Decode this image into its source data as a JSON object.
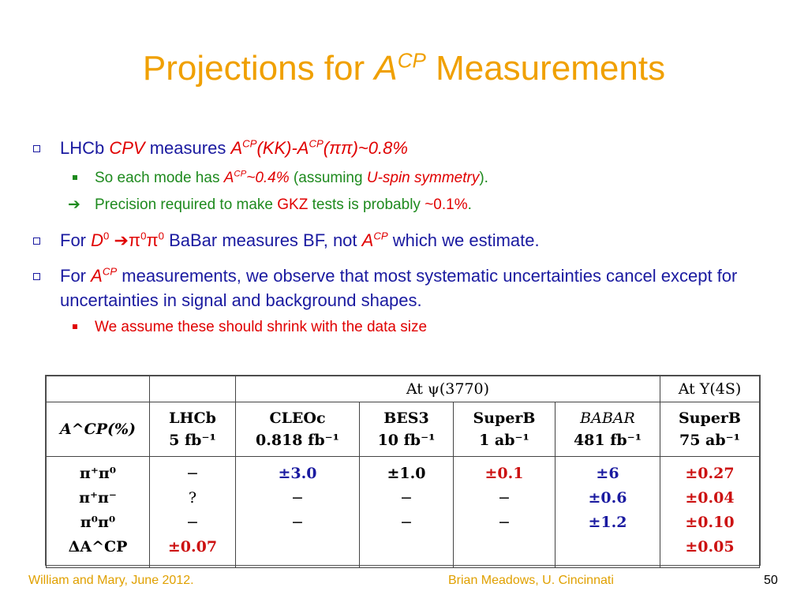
{
  "title": {
    "prefix": "Projections for ",
    "var": "A",
    "sup": "CP",
    "suffix": " Measurements"
  },
  "bullets": {
    "b1": {
      "t1": "LHCb ",
      "t2": "CPV",
      "t3": "  measures ",
      "t4": "A",
      "t5": "CP",
      "t6": "(KK)-A",
      "t7": "CP",
      "t8": "(ππ)~0.8%"
    },
    "b1a": {
      "t1": "So each mode has ",
      "t2": "A",
      "t3": "CP",
      "t4": "~0.4%",
      "t5": " (assuming ",
      "t6": "U-spin symmetry",
      "t7": ")."
    },
    "b1b": {
      "arrow": "➔",
      "t1": "Precision required to make ",
      "t2": "GKZ",
      "t3": " tests is probably ",
      "t4": "~0.1%",
      "t5": "."
    },
    "b2": {
      "t1": "For ",
      "t2": "D",
      "t3": "0",
      "t4": " ➔π",
      "t5": "0",
      "t6": "π",
      "t7": "0",
      "t8": " BaBar measures BF, not ",
      "t9": "A",
      "t10": "CP",
      "t11": " which we estimate."
    },
    "b3": {
      "t1": "For ",
      "t2": "A",
      "t3": "CP",
      "t4": " measurements, we observe that most systematic uncertainties cancel except for uncertainties in signal and background shapes."
    },
    "b3a": {
      "t1": "We assume these should shrink with the data size"
    }
  },
  "table": {
    "group1": "At ψ(3770)",
    "group2": "At Υ(4S)",
    "corner": "A^CP(%)",
    "cols": [
      {
        "l1": "LHCb",
        "l2": "5 fb⁻¹"
      },
      {
        "l1": "CLEOc",
        "l2": "0.818 fb⁻¹"
      },
      {
        "l1": "BES3",
        "l2": "10 fb⁻¹"
      },
      {
        "l1": "SuperB",
        "l2": "1 ab⁻¹"
      },
      {
        "l1": "BABAR",
        "l2": "481 fb⁻¹"
      },
      {
        "l1": "SuperB",
        "l2": "75 ab⁻¹"
      }
    ],
    "rows": [
      "π⁺π⁰",
      "π⁺π⁻",
      "π⁰π⁰",
      "ΔA^CP"
    ],
    "lhcb": [
      "−",
      "?",
      "−",
      "±0.07"
    ],
    "cleoc": [
      "±3.0",
      "−",
      "−"
    ],
    "bes3": [
      "±1.0",
      "−",
      "−"
    ],
    "superb1": [
      "±0.1",
      "−",
      "−"
    ],
    "babar": [
      "±6",
      "±0.6",
      "±1.2"
    ],
    "superb2": [
      "±0.27",
      "±0.04",
      "±0.10",
      "±0.05"
    ]
  },
  "footer": {
    "left": "William and Mary, June 2012.",
    "center": "Brian Meadows, U. Cincinnati",
    "page": "50"
  }
}
